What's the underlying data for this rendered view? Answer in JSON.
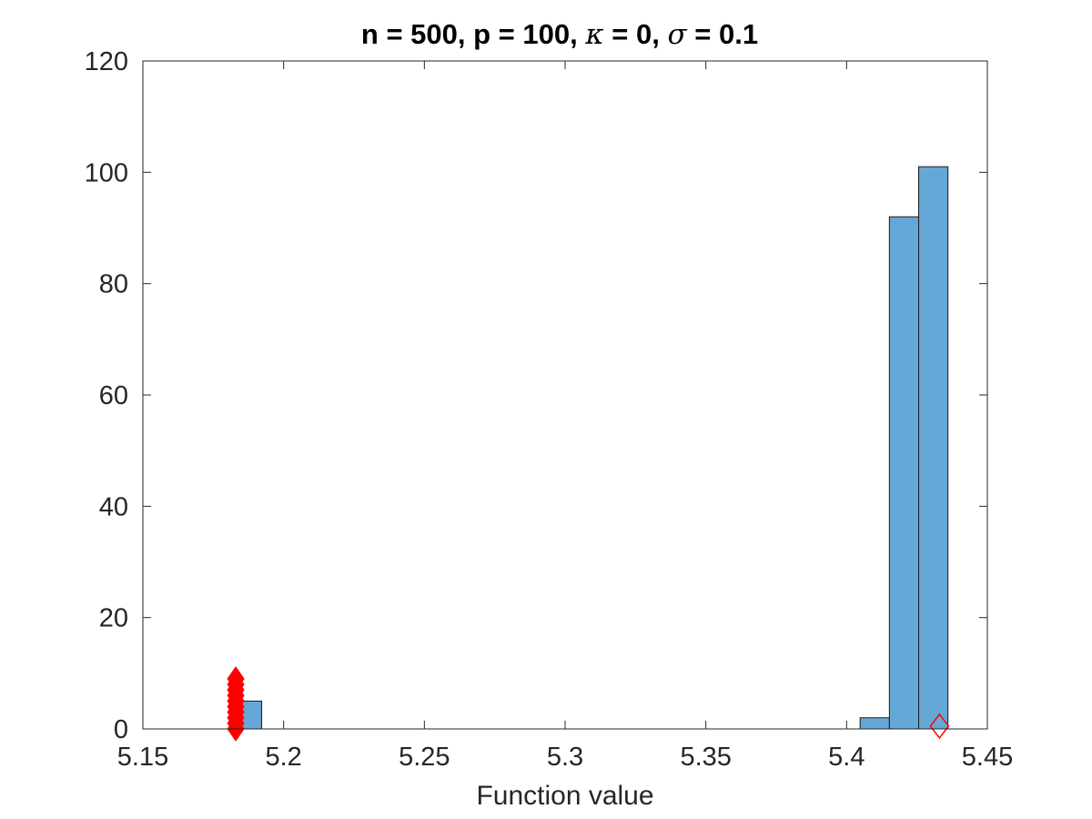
{
  "chart_data": {
    "type": "bar",
    "title_parts": {
      "prefix": "n = 500, p = 100, ",
      "kappa": "κ",
      "kappa_rest": " = 0, ",
      "sigma": "σ",
      "sigma_rest": " = 0.1"
    },
    "xlabel": "Function value",
    "ylabel": "",
    "xlim": [
      5.15,
      5.45
    ],
    "ylim": [
      0,
      120
    ],
    "xticks": [
      "5.15",
      "5.2",
      "5.25",
      "5.3",
      "5.35",
      "5.4",
      "5.45"
    ],
    "yticks": [
      "0",
      "20",
      "40",
      "60",
      "80",
      "100",
      "120"
    ],
    "bin_edges": [
      5.1818,
      5.1923,
      5.4048,
      5.4152,
      5.4256,
      5.436
    ],
    "bins": [
      {
        "x0": 5.1818,
        "x1": 5.1922,
        "count": 5
      },
      {
        "x0": 5.4048,
        "x1": 5.4152,
        "count": 2
      },
      {
        "x0": 5.4152,
        "x1": 5.4256,
        "count": 92
      },
      {
        "x0": 5.4256,
        "x1": 5.436,
        "count": 101
      }
    ],
    "markers": {
      "shape": "diamond",
      "color": "#ff0000",
      "filled_points": [
        {
          "x": 5.183,
          "y": 0
        },
        {
          "x": 5.183,
          "y": 1
        },
        {
          "x": 5.183,
          "y": 2
        },
        {
          "x": 5.183,
          "y": 3
        },
        {
          "x": 5.183,
          "y": 4
        },
        {
          "x": 5.183,
          "y": 5
        },
        {
          "x": 5.183,
          "y": 6
        },
        {
          "x": 5.183,
          "y": 7
        },
        {
          "x": 5.183,
          "y": 8
        },
        {
          "x": 5.183,
          "y": 9
        }
      ],
      "open_points": [
        {
          "x": 5.433,
          "y": 0.5
        }
      ]
    },
    "grid": false,
    "colors": {
      "bar_fill": "#65a8d8",
      "bar_edge": "#1a1a1a",
      "axis": "#262626",
      "marker": "#ff0000"
    }
  }
}
